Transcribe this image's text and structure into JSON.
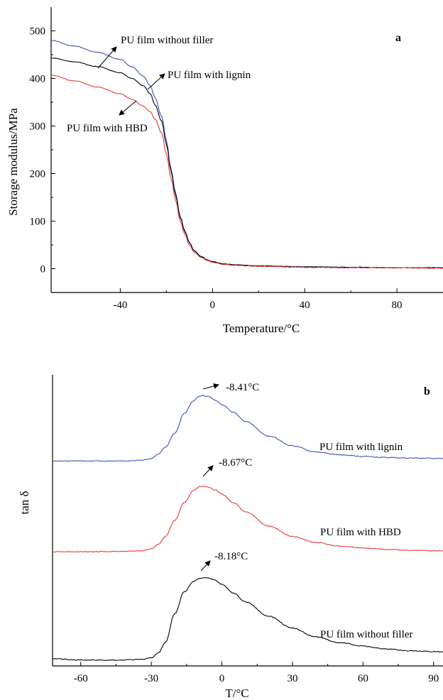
{
  "chart_data": [
    {
      "type": "line",
      "panel_label": "a",
      "xlabel": "Temperature/°C",
      "ylabel": "Storage modulus/MPa",
      "xlim": [
        -70,
        100
      ],
      "ylim": [
        -50,
        550
      ],
      "xticks": [
        -40,
        0,
        40,
        80
      ],
      "yticks": [
        0,
        100,
        200,
        300,
        400,
        500
      ],
      "grid": false,
      "series": [
        {
          "name": "PU film without filler",
          "color": "#3f51b5",
          "x": [
            -70,
            -60,
            -50,
            -40,
            -35,
            -30,
            -27,
            -25,
            -22,
            -20,
            -18,
            -16,
            -14,
            -12,
            -10,
            -8,
            -5,
            -2,
            0,
            5,
            10,
            20,
            40,
            60,
            80,
            100
          ],
          "y": [
            480,
            468,
            455,
            440,
            425,
            405,
            385,
            360,
            320,
            270,
            210,
            160,
            110,
            80,
            55,
            38,
            25,
            18,
            14,
            10,
            8,
            6,
            4,
            3,
            2,
            2
          ]
        },
        {
          "name": "PU film with lignin",
          "color": "#000000",
          "x": [
            -70,
            -60,
            -50,
            -40,
            -35,
            -30,
            -27,
            -25,
            -22,
            -20,
            -18,
            -16,
            -14,
            -12,
            -10,
            -8,
            -5,
            -2,
            0,
            5,
            10,
            20,
            40,
            60,
            80,
            100
          ],
          "y": [
            443,
            435,
            425,
            412,
            400,
            385,
            368,
            345,
            310,
            262,
            205,
            155,
            108,
            78,
            55,
            38,
            26,
            18,
            15,
            10,
            8,
            6,
            4,
            3,
            2,
            2
          ]
        },
        {
          "name": "PU film with HBD",
          "color": "#e53935",
          "x": [
            -70,
            -60,
            -50,
            -40,
            -35,
            -30,
            -27,
            -25,
            -22,
            -20,
            -18,
            -16,
            -14,
            -12,
            -10,
            -8,
            -5,
            -2,
            0,
            5,
            10,
            20,
            40,
            60,
            80,
            100
          ],
          "y": [
            407,
            395,
            382,
            368,
            356,
            342,
            330,
            315,
            285,
            240,
            190,
            145,
            100,
            72,
            50,
            35,
            24,
            17,
            13,
            9,
            7,
            5,
            3,
            2,
            2,
            1
          ]
        }
      ],
      "annotations": [
        {
          "text": "PU film without filler"
        },
        {
          "text": "PU film with lignin"
        },
        {
          "text": "PU film with HBD"
        }
      ]
    },
    {
      "type": "line",
      "panel_label": "b",
      "xlabel": "T/°C",
      "ylabel": "tan δ",
      "xlim": [
        -72,
        94
      ],
      "xticks": [
        -60,
        -30,
        0,
        30,
        60,
        90
      ],
      "ylim": [
        0,
        1
      ],
      "y_ticks_shown": false,
      "grid": false,
      "series": [
        {
          "name": "PU film with lignin",
          "color": "#3f51b5",
          "x": [
            -72,
            -60,
            -45,
            -35,
            -30,
            -27,
            -24,
            -20,
            -16,
            -12,
            -10,
            -8.41,
            -6,
            -3,
            0,
            5,
            10,
            20,
            30,
            40,
            50,
            60,
            70,
            80,
            94
          ],
          "y": [
            0.704,
            0.704,
            0.704,
            0.706,
            0.712,
            0.728,
            0.752,
            0.8,
            0.868,
            0.91,
            0.924,
            0.929,
            0.926,
            0.914,
            0.898,
            0.87,
            0.84,
            0.79,
            0.756,
            0.735,
            0.725,
            0.72,
            0.716,
            0.714,
            0.713
          ]
        },
        {
          "name": "PU film with HBD",
          "color": "#e53935",
          "x": [
            -72,
            -60,
            -45,
            -35,
            -30,
            -27,
            -24,
            -20,
            -16,
            -12,
            -10,
            -8.67,
            -6,
            -3,
            0,
            5,
            10,
            20,
            30,
            40,
            50,
            60,
            70,
            80,
            94
          ],
          "y": [
            0.392,
            0.392,
            0.393,
            0.395,
            0.402,
            0.418,
            0.445,
            0.5,
            0.562,
            0.603,
            0.614,
            0.618,
            0.615,
            0.605,
            0.59,
            0.56,
            0.53,
            0.48,
            0.445,
            0.424,
            0.412,
            0.405,
            0.4,
            0.397,
            0.395
          ]
        },
        {
          "name": "PU film without filler",
          "color": "#000000",
          "x": [
            -72,
            -60,
            -45,
            -35,
            -30,
            -27,
            -24,
            -20,
            -16,
            -12,
            -10,
            -8.18,
            -6,
            -3,
            0,
            5,
            10,
            20,
            30,
            40,
            50,
            60,
            70,
            80,
            94
          ],
          "y": [
            0.025,
            0.02,
            0.02,
            0.022,
            0.028,
            0.045,
            0.08,
            0.18,
            0.255,
            0.29,
            0.3,
            0.303,
            0.302,
            0.295,
            0.28,
            0.25,
            0.22,
            0.17,
            0.13,
            0.1,
            0.08,
            0.068,
            0.058,
            0.052,
            0.048
          ]
        }
      ],
      "annotations": [
        {
          "text": "-8.41°C"
        },
        {
          "text": "-8.67°C"
        },
        {
          "text": "-8.18°C"
        },
        {
          "text": "PU film with lignin"
        },
        {
          "text": "PU film with HBD"
        },
        {
          "text": "PU film without filler"
        }
      ]
    }
  ]
}
